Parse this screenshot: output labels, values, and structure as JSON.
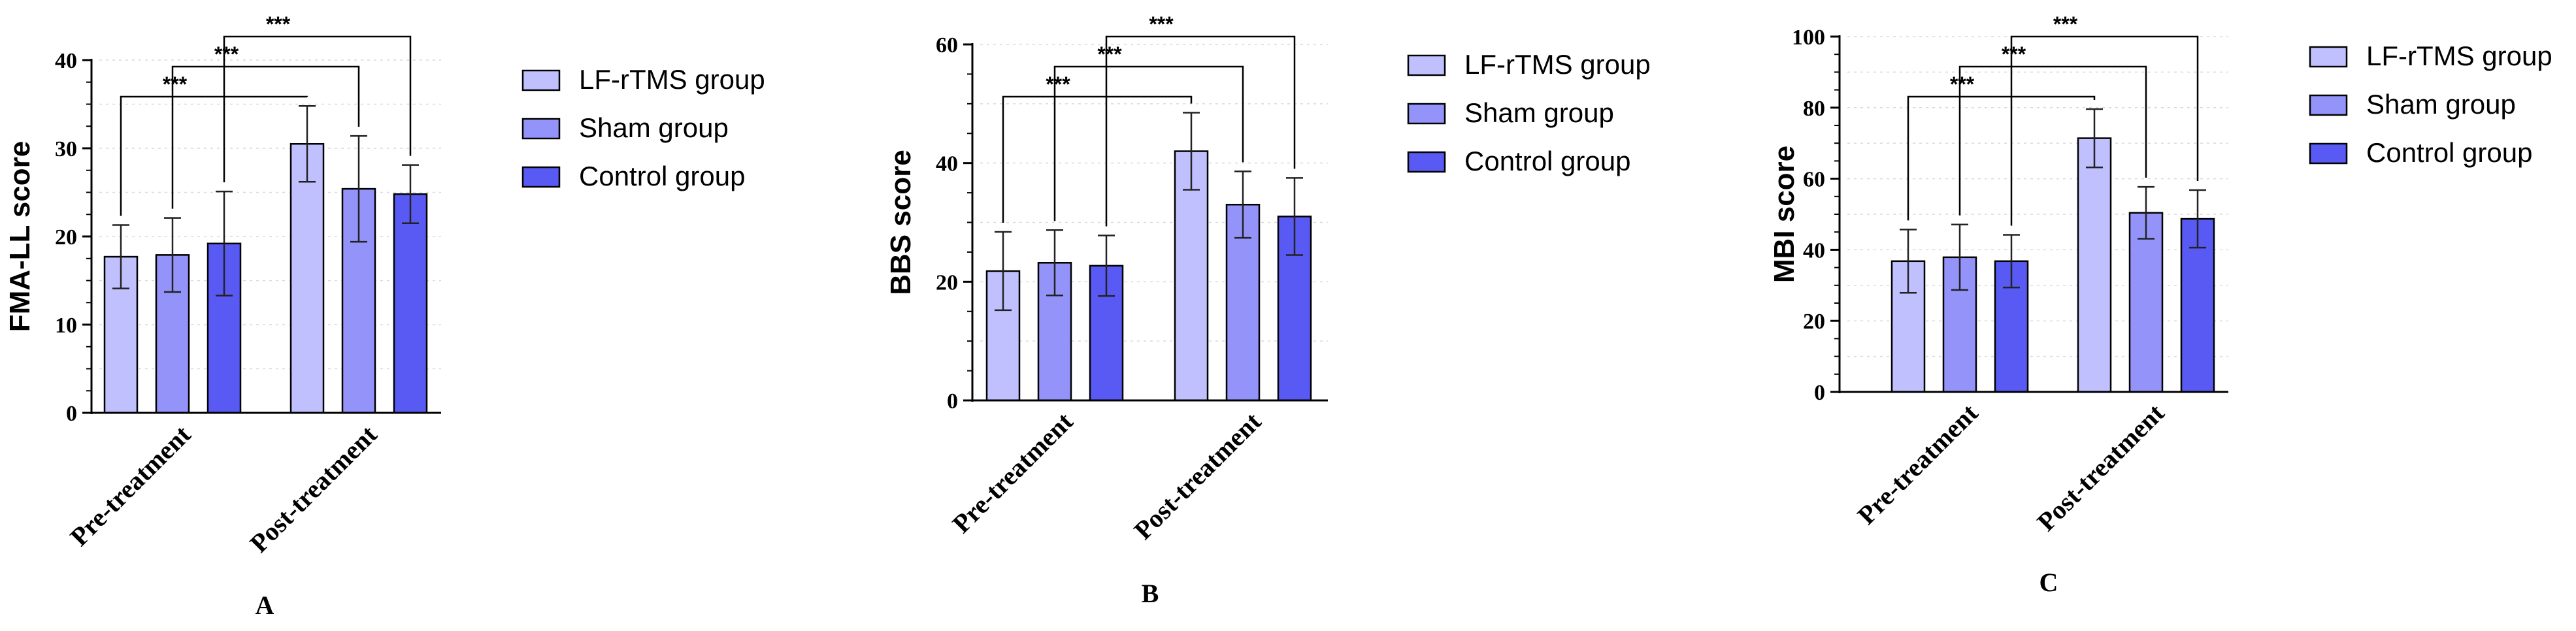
{
  "chart_data": [
    {
      "type": "bar",
      "panel_label": "A",
      "ylabel": "FMA-LL score",
      "ylim": [
        0,
        40
      ],
      "yticks": [
        0,
        10,
        20,
        30,
        40
      ],
      "categories": [
        "Pre-treatment",
        "Post-treatment"
      ],
      "series": [
        {
          "name": "LF-rTMS group",
          "color": "#c0c0ff",
          "values": [
            17.7,
            30.5
          ],
          "errors": [
            3.6,
            4.3
          ]
        },
        {
          "name": "Sham group",
          "color": "#9393fa",
          "values": [
            17.9,
            25.4
          ],
          "errors": [
            4.2,
            6.0
          ]
        },
        {
          "name": "Control group",
          "color": "#5959f4",
          "values": [
            19.2,
            24.8
          ],
          "errors": [
            5.9,
            3.3
          ]
        }
      ],
      "significance": [
        {
          "from": [
            0,
            0
          ],
          "to": [
            1,
            0
          ],
          "text": "***"
        },
        {
          "from": [
            0,
            1
          ],
          "to": [
            1,
            1
          ],
          "text": "***"
        },
        {
          "from": [
            0,
            2
          ],
          "to": [
            1,
            2
          ],
          "text": "***"
        }
      ],
      "legend": "right"
    },
    {
      "type": "bar",
      "panel_label": "B",
      "ylabel": "BBS score",
      "ylim": [
        0,
        60
      ],
      "yticks": [
        0,
        20,
        40,
        60
      ],
      "categories": [
        "Pre-treatment",
        "Post-treatment"
      ],
      "series": [
        {
          "name": "LF-rTMS group",
          "color": "#c0c0ff",
          "values": [
            21.8,
            42.0
          ],
          "errors": [
            6.6,
            6.5
          ]
        },
        {
          "name": "Sham group",
          "color": "#9393fa",
          "values": [
            23.2,
            33.0
          ],
          "errors": [
            5.5,
            5.6
          ]
        },
        {
          "name": "Control group",
          "color": "#5959f4",
          "values": [
            22.7,
            31.0
          ],
          "errors": [
            5.1,
            6.5
          ]
        }
      ],
      "significance": [
        {
          "from": [
            0,
            0
          ],
          "to": [
            1,
            0
          ],
          "text": "***"
        },
        {
          "from": [
            0,
            1
          ],
          "to": [
            1,
            1
          ],
          "text": "***"
        },
        {
          "from": [
            0,
            2
          ],
          "to": [
            1,
            2
          ],
          "text": "***"
        }
      ],
      "legend": "right"
    },
    {
      "type": "bar",
      "panel_label": "C",
      "ylabel": "MBI score",
      "ylim": [
        0,
        100
      ],
      "yticks": [
        0,
        20,
        40,
        60,
        80,
        100
      ],
      "categories": [
        "Pre-treatment",
        "Post-treatment"
      ],
      "series": [
        {
          "name": "LF-rTMS group",
          "color": "#c0c0ff",
          "values": [
            36.8,
            71.4
          ],
          "errors": [
            8.9,
            8.2
          ]
        },
        {
          "name": "Sham group",
          "color": "#9393fa",
          "values": [
            37.9,
            50.4
          ],
          "errors": [
            9.2,
            7.3
          ]
        },
        {
          "name": "Control group",
          "color": "#5959f4",
          "values": [
            36.8,
            48.7
          ],
          "errors": [
            7.4,
            8.1
          ]
        }
      ],
      "significance": [
        {
          "from": [
            0,
            0
          ],
          "to": [
            1,
            0
          ],
          "text": "***"
        },
        {
          "from": [
            0,
            1
          ],
          "to": [
            1,
            1
          ],
          "text": "***"
        },
        {
          "from": [
            0,
            2
          ],
          "to": [
            1,
            2
          ],
          "text": "***"
        }
      ],
      "legend": "right"
    }
  ]
}
